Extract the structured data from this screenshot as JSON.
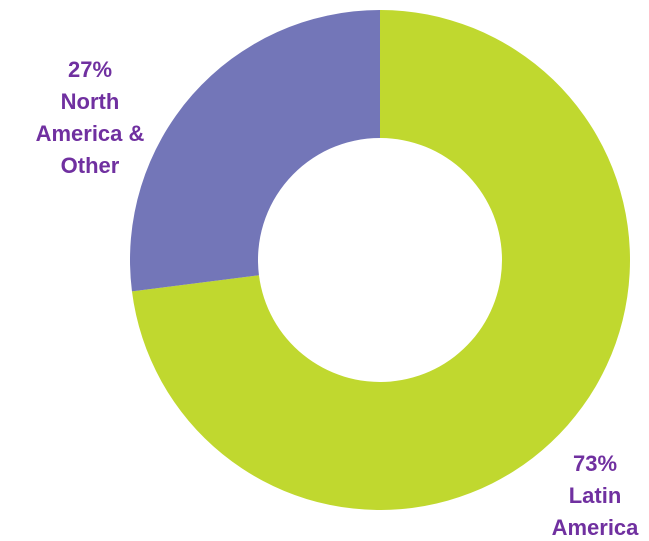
{
  "chart_data": {
    "type": "donut",
    "categories": [
      "Latin America",
      "North America & Other"
    ],
    "values": [
      73,
      27
    ],
    "value_labels": [
      "73%",
      "27%"
    ],
    "colors": [
      "#c0d82f",
      "#7376b8"
    ],
    "label_color": "#7030a0"
  }
}
